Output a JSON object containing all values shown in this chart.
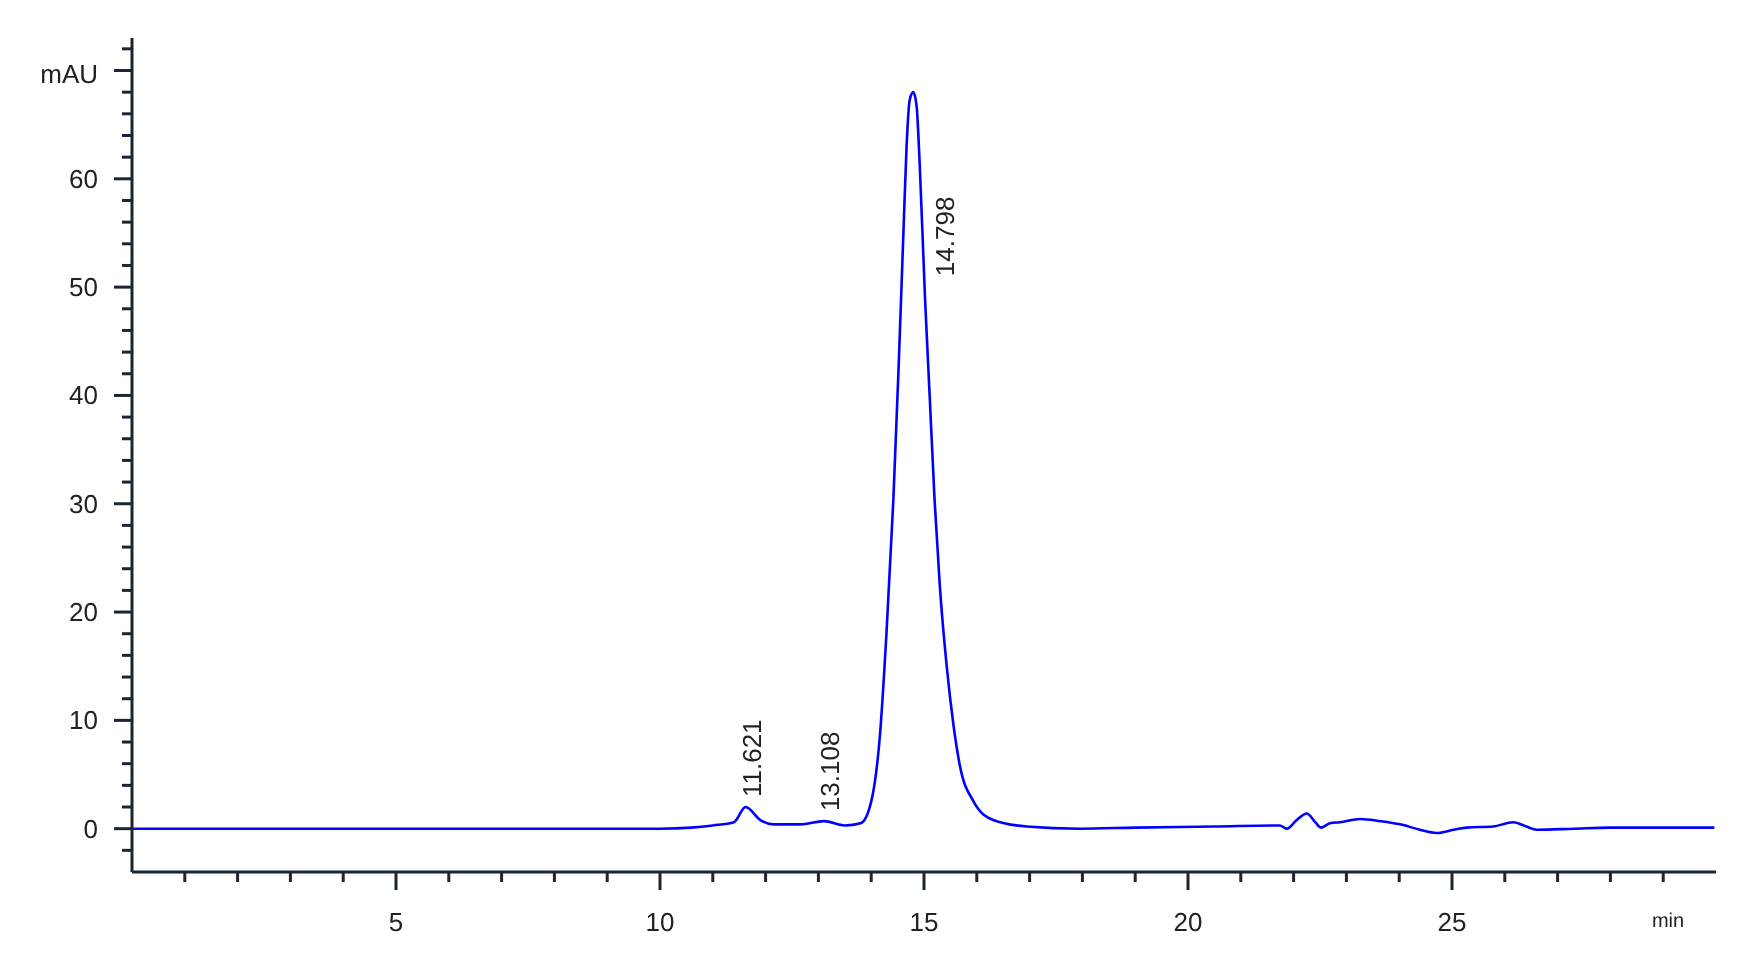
{
  "chart_data": {
    "type": "line",
    "xlabel": "min",
    "ylabel": "mAU",
    "x": [
      0,
      1,
      2,
      3,
      4,
      5,
      6,
      7,
      8,
      9,
      10,
      10.6,
      11.0,
      11.4,
      11.621,
      11.9,
      12.15,
      12.65,
      13.108,
      13.5,
      13.8,
      14.0,
      14.17,
      14.29,
      14.42,
      14.52,
      14.61,
      14.67,
      14.73,
      14.798,
      14.86,
      14.92,
      15.02,
      15.11,
      15.2,
      15.3,
      15.43,
      15.56,
      15.68,
      15.94,
      16.31,
      16.94,
      17.95,
      19,
      20.5,
      21.74,
      21.87,
      22.06,
      22.25,
      22.41,
      22.52,
      22.69,
      22.88,
      23.26,
      23.64,
      24.02,
      24.39,
      24.71,
      25.03,
      25.28,
      25.78,
      26.16,
      26.41,
      26.6,
      27.3,
      28,
      29,
      29.95
    ],
    "series": [
      {
        "color": "#0000ff",
        "values": [
          0,
          0,
          0,
          0,
          0,
          0,
          0,
          0,
          0,
          0,
          0,
          0.1,
          0.3,
          0.6,
          2.0,
          0.8,
          0.4,
          0.4,
          0.7,
          0.3,
          0.5,
          2.5,
          8.9,
          18.1,
          30.4,
          42.7,
          55.0,
          63.0,
          67.3,
          68.0,
          66.7,
          61.2,
          48.9,
          39.7,
          30.4,
          22.4,
          15.0,
          9.5,
          5.8,
          2.5,
          0.8,
          0.2,
          0.0,
          0.1,
          0.2,
          0.3,
          0.0,
          0.8,
          1.4,
          0.6,
          0.1,
          0.5,
          0.6,
          0.9,
          0.7,
          0.4,
          -0.1,
          -0.4,
          -0.1,
          0.1,
          0.2,
          0.6,
          0.2,
          -0.1,
          0.0,
          0.1,
          0.1,
          0.1
        ]
      }
    ],
    "xlim": [
      0,
      30
    ],
    "xticks": [
      {
        "value": 1,
        "label": null
      },
      {
        "value": 2,
        "label": null
      },
      {
        "value": 3,
        "label": null
      },
      {
        "value": 4,
        "label": null
      },
      5,
      {
        "value": 6,
        "label": null
      },
      {
        "value": 7,
        "label": null
      },
      {
        "value": 8,
        "label": null
      },
      {
        "value": 9,
        "label": null
      },
      10,
      {
        "value": 11,
        "label": null
      },
      {
        "value": 12,
        "label": null
      },
      {
        "value": 13,
        "label": null
      },
      {
        "value": 14,
        "label": null
      },
      15,
      {
        "value": 16,
        "label": null
      },
      {
        "value": 17,
        "label": null
      },
      {
        "value": 18,
        "label": null
      },
      {
        "value": 19,
        "label": null
      },
      20,
      {
        "value": 21,
        "label": null
      },
      {
        "value": 22,
        "label": null
      },
      {
        "value": 23,
        "label": null
      },
      {
        "value": 24,
        "label": null
      },
      25,
      {
        "value": 26,
        "label": null
      },
      {
        "value": 27,
        "label": null
      },
      {
        "value": 28,
        "label": null
      },
      {
        "value": 29,
        "label": null
      }
    ],
    "ylim": [
      -4,
      73
    ],
    "yticks": [
      {
        "value": -2,
        "label": null
      },
      0,
      {
        "value": 2,
        "label": null
      },
      {
        "value": 4,
        "label": null
      },
      {
        "value": 6,
        "label": null
      },
      {
        "value": 8,
        "label": null
      },
      10,
      {
        "value": 12,
        "label": null
      },
      {
        "value": 14,
        "label": null
      },
      {
        "value": 16,
        "label": null
      },
      {
        "value": 18,
        "label": null
      },
      20,
      {
        "value": 22,
        "label": null
      },
      {
        "value": 24,
        "label": null
      },
      {
        "value": 26,
        "label": null
      },
      {
        "value": 28,
        "label": null
      },
      30,
      {
        "value": 32,
        "label": null
      },
      {
        "value": 34,
        "label": null
      },
      {
        "value": 36,
        "label": null
      },
      {
        "value": 38,
        "label": null
      },
      40,
      {
        "value": 42,
        "label": null
      },
      {
        "value": 44,
        "label": null
      },
      {
        "value": 46,
        "label": null
      },
      {
        "value": 48,
        "label": null
      },
      50,
      {
        "value": 52,
        "label": null
      },
      {
        "value": 54,
        "label": null
      },
      {
        "value": 56,
        "label": null
      },
      {
        "value": 58,
        "label": null
      },
      60,
      {
        "value": 62,
        "label": null
      },
      {
        "value": 64,
        "label": null
      },
      {
        "value": 66,
        "label": null
      },
      {
        "value": 68,
        "label": null
      },
      {
        "value": 70,
        "label": null
      },
      {
        "value": 72,
        "label": null
      }
    ],
    "annotations": [
      {
        "text": "11.621",
        "x": 11.621,
        "y": 2.0
      },
      {
        "text": "13.108",
        "x": 13.108,
        "y": 0.7
      },
      {
        "text": "14.798",
        "x": 14.798,
        "y": 55
      }
    ]
  }
}
